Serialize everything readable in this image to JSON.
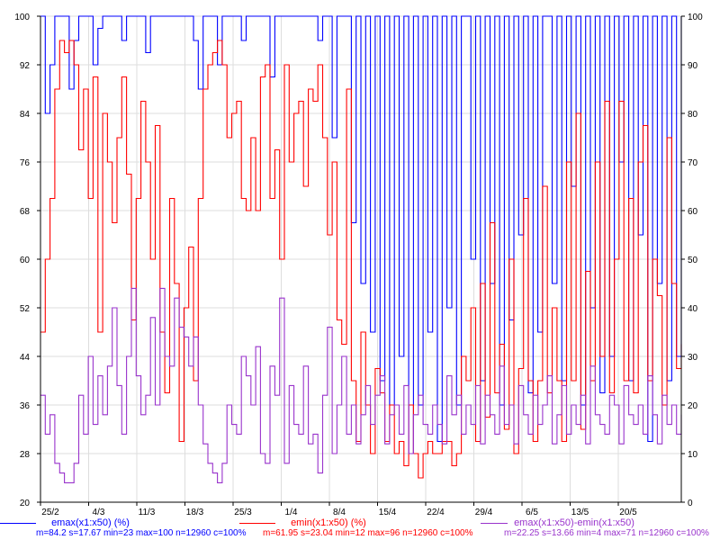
{
  "chart_data": {
    "type": "line",
    "title": "",
    "xlabel": "",
    "ylabel": "",
    "x_ticks": [
      "25/2",
      "4/3",
      "11/3",
      "18/3",
      "25/3",
      "1/4",
      "8/4",
      "15/4",
      "22/4",
      "29/4",
      "6/5",
      "13/5",
      "20/5"
    ],
    "ylim_left": [
      20,
      100
    ],
    "yticks_left": [
      20,
      28,
      36,
      44,
      52,
      60,
      68,
      76,
      84,
      92,
      100
    ],
    "ylim_right": [
      0,
      100
    ],
    "yticks_right": [
      0,
      10,
      20,
      30,
      40,
      50,
      60,
      70,
      80,
      90,
      100
    ],
    "grid": true,
    "legend_position": "bottom",
    "series": [
      {
        "name": "emax(x1:x50) (%)",
        "stats": "m=84.2 s=17.67 min=23 max=100 n=12960 c=100%",
        "color": "#0000ff",
        "axis": "left",
        "values": [
          100,
          84,
          92,
          100,
          100,
          100,
          88,
          96,
          100,
          100,
          100,
          92,
          98,
          100,
          100,
          100,
          100,
          96,
          100,
          100,
          100,
          100,
          94,
          100,
          100,
          100,
          100,
          100,
          100,
          100,
          100,
          100,
          96,
          88,
          100,
          100,
          100,
          92,
          100,
          100,
          100,
          100,
          96,
          100,
          100,
          100,
          100,
          100,
          90,
          100,
          100,
          100,
          100,
          100,
          100,
          100,
          100,
          100,
          96,
          100,
          100,
          80,
          100,
          100,
          100,
          66,
          100,
          56,
          100,
          48,
          100,
          40,
          100,
          36,
          100,
          44,
          100,
          28,
          100,
          36,
          100,
          48,
          100,
          30,
          100,
          52,
          100,
          36,
          100,
          100,
          60,
          100,
          40,
          100,
          56,
          100,
          36,
          100,
          50,
          100,
          64,
          100,
          38,
          100,
          48,
          100,
          100,
          56,
          100,
          40,
          100,
          72,
          100,
          36,
          100,
          52,
          100,
          38,
          100,
          44,
          100,
          76,
          100,
          40,
          100,
          64,
          100,
          30,
          100,
          56,
          100,
          40,
          100,
          44,
          100
        ]
      },
      {
        "name": "emin(x1:x50) (%)",
        "stats": "m=61.95 s=23.04 min=12 max=96 n=12960 c=100%",
        "color": "#ff0000",
        "axis": "left",
        "values": [
          48,
          60,
          70,
          88,
          96,
          94,
          96,
          92,
          78,
          88,
          70,
          90,
          48,
          84,
          76,
          66,
          80,
          90,
          74,
          50,
          70,
          86,
          76,
          60,
          82,
          48,
          38,
          70,
          56,
          30,
          52,
          62,
          40,
          70,
          88,
          92,
          94,
          96,
          92,
          80,
          84,
          86,
          70,
          68,
          80,
          68,
          90,
          92,
          70,
          78,
          60,
          92,
          76,
          84,
          86,
          72,
          88,
          86,
          92,
          80,
          64,
          76,
          50,
          46,
          88,
          40,
          30,
          48,
          36,
          28,
          42,
          38,
          30,
          36,
          28,
          30,
          26,
          36,
          28,
          24,
          28,
          30,
          28,
          28,
          30,
          30,
          26,
          28,
          44,
          40,
          52,
          30,
          56,
          34,
          66,
          38,
          46,
          32,
          60,
          28,
          42,
          70,
          40,
          30,
          40,
          72,
          38,
          52,
          40,
          30,
          76,
          40,
          84,
          32,
          58,
          40,
          76,
          44,
          86,
          38,
          60,
          86,
          40,
          70,
          38,
          76,
          82,
          40,
          60,
          54,
          36,
          80,
          56,
          42,
          46
        ]
      },
      {
        "name": "emax(x1:x50)-emin(x1:x50)",
        "stats": "m=22.25 s=13.66 min=4 max=71 n=12960 c=100%",
        "color": "#9933cc",
        "axis": "right",
        "values": [
          22,
          14,
          18,
          8,
          6,
          4,
          4,
          8,
          22,
          14,
          30,
          16,
          26,
          18,
          28,
          40,
          24,
          14,
          30,
          44,
          26,
          18,
          22,
          38,
          20,
          44,
          30,
          28,
          42,
          36,
          34,
          28,
          34,
          20,
          12,
          8,
          6,
          4,
          8,
          20,
          16,
          14,
          30,
          26,
          20,
          32,
          10,
          8,
          28,
          22,
          42,
          8,
          24,
          16,
          14,
          28,
          12,
          14,
          6,
          22,
          36,
          10,
          20,
          30,
          14,
          20,
          12,
          18,
          24,
          16,
          22,
          26,
          12,
          18,
          20,
          14,
          24,
          10,
          18,
          22,
          16,
          14,
          20,
          16,
          12,
          26,
          18,
          22,
          14,
          20,
          16,
          24,
          12,
          22,
          18,
          14,
          28,
          16,
          20,
          12,
          24,
          18,
          14,
          22,
          16,
          20,
          26,
          12,
          18,
          24,
          14,
          20,
          16,
          22,
          12,
          28,
          18,
          16,
          14,
          22,
          20,
          12,
          24,
          18,
          16,
          20,
          14,
          26,
          18,
          12,
          22,
          16,
          20,
          14,
          18
        ]
      }
    ]
  }
}
